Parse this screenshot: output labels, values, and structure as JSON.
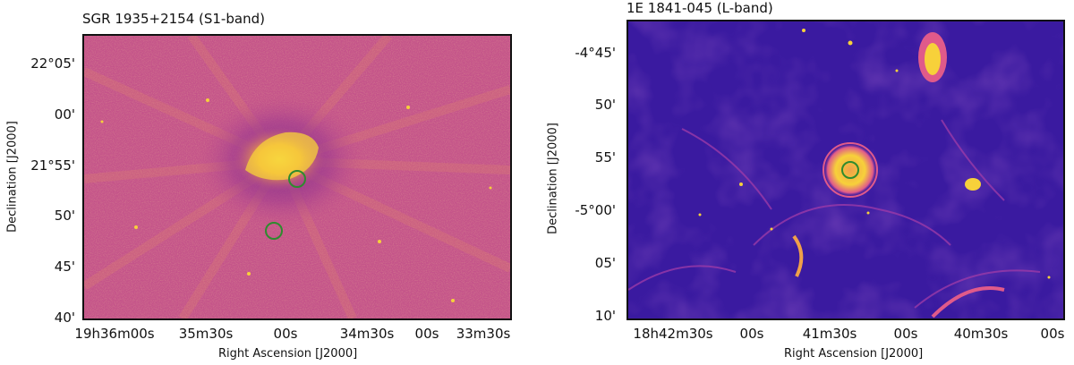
{
  "panels": [
    {
      "title": "SGR 1935+2154 (S1-band)",
      "xlabel": "Right Ascension [J2000]",
      "ylabel": "Declination [J2000]",
      "yticks": [
        "22°05'",
        "00'",
        "21°55'",
        "50'",
        "45'",
        "40'"
      ],
      "xticks": [
        "19h36m00s",
        "35m30s",
        "00s",
        "34m30s",
        "00s",
        "33m30s"
      ],
      "markers": 2,
      "colormap": "plasma"
    },
    {
      "title": "1E 1841-045 (L-band)",
      "xlabel": "Right Ascension [J2000]",
      "ylabel": "Declination [J2000]",
      "yticks": [
        "-4°45'",
        "50'",
        "55'",
        "-5°00'",
        "05'",
        "10'"
      ],
      "xticks": [
        "18h42m30s",
        "00s",
        "41m30s",
        "00s",
        "40m30s",
        "00s"
      ],
      "markers": 1,
      "colormap": "plasma"
    }
  ],
  "colors": {
    "background_left": "#c4538a",
    "background_right": "#3a1aa0",
    "bright": "#f7d13a",
    "marker": "#2e8b2e"
  }
}
